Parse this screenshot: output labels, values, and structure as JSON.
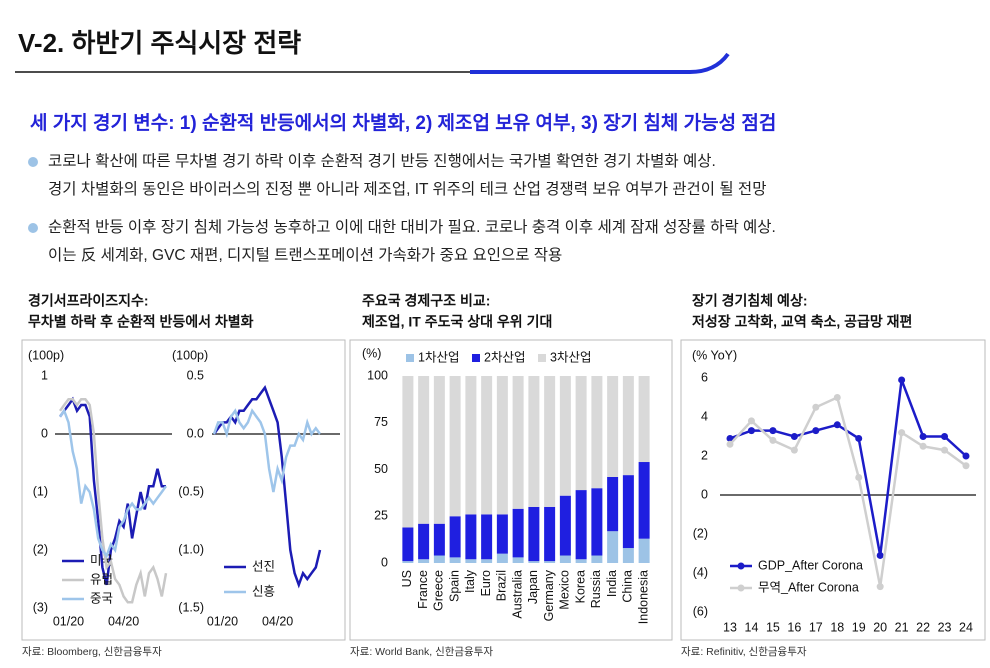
{
  "header": {
    "title": "V-2. 하반기 주식시장 전략",
    "subtitle": "세 가지 경기 변수: 1) 순환적 반등에서의 차별화, 2) 제조업 보유 여부, 3) 장기 침체 가능성 점검"
  },
  "bullets": [
    [
      "코로나 확산에 따른 무차별 경기 하락 이후 순환적 경기 반등 진행에서는 국가별 확연한 경기 차별화 예상.",
      "경기 차별화의 동인은 바이러스의 진정 뿐 아니라 제조업, IT 위주의 테크 산업 경쟁력 보유 여부가 관건이 될 전망"
    ],
    [
      "순환적 반등 이후 장기 침체 가능성 농후하고 이에 대한 대비가 필요. 코로나 충격 이후 세계 잠재 성장률 하락 예상.",
      "이는 反 세계화, GVC 재편, 디지털 트랜스포메이션 가속화가 중요 요인으로 작용"
    ]
  ],
  "chart_data": [
    {
      "type": "line",
      "title": [
        "경기서프라이즈지수:",
        "무차별 하락 후 순환적 반등에서 차별화"
      ],
      "y_unit": "(100p)",
      "source": "자료: Bloomberg, 신한금융투자",
      "categories": [
        null,
        null,
        "01/20",
        null,
        null,
        null,
        null,
        null,
        null,
        null,
        null,
        null,
        null,
        null,
        null,
        "04/20",
        null,
        null,
        null,
        null,
        null,
        null,
        null,
        null,
        null,
        null
      ],
      "ylim": [
        -3,
        1
      ],
      "yticks": [
        1,
        0,
        {
          "value": -1,
          "label": "(1)"
        },
        {
          "value": -2,
          "label": "(2)"
        },
        {
          "value": -3,
          "label": "(3)"
        }
      ],
      "zero_line": true,
      "series": [
        {
          "name": "미국",
          "color": "#1c1cb4",
          "values": [
            0.3,
            0.4,
            0.5,
            0.6,
            0.4,
            0.5,
            0.5,
            0.3,
            -0.8,
            -1.5,
            -2.3,
            -2.6,
            -2.0,
            -1.8,
            -1.5,
            -1.6,
            -1.2,
            -1.8,
            -1.4,
            -1.0,
            -1.3,
            -0.9,
            -0.9,
            -0.6,
            -0.9,
            -0.9
          ]
        },
        {
          "name": "유럽",
          "color": "#c8c8c8",
          "values": [
            0.4,
            0.5,
            0.6,
            0.6,
            0.5,
            0.6,
            0.6,
            0.5,
            0.0,
            -1.0,
            -1.8,
            -2.3,
            -2.2,
            -2.5,
            -2.6,
            -2.8,
            -2.9,
            -2.9,
            -2.6,
            -2.4,
            -2.8,
            -2.4,
            -2.3,
            -2.5,
            -2.8,
            -2.4
          ]
        },
        {
          "name": "중국",
          "color": "#9ec5ea",
          "values": [
            0.3,
            0.4,
            0.2,
            -0.3,
            -0.6,
            -1.2,
            -0.9,
            -1.0,
            -1.3,
            -1.8,
            -2.0,
            -2.1,
            -1.9,
            -2.0,
            -1.6,
            -1.5,
            -1.3,
            -1.2,
            -1.3,
            -1.3,
            -1.2,
            -1.1,
            -1.2,
            -1.1,
            -1.0,
            -0.9
          ]
        }
      ]
    },
    {
      "type": "line",
      "y_unit": "(100p)",
      "categories": [
        null,
        null,
        "01/20",
        null,
        null,
        null,
        null,
        null,
        null,
        null,
        null,
        null,
        null,
        null,
        null,
        "04/20",
        null,
        null,
        null,
        null,
        null,
        null,
        null,
        null,
        null,
        null
      ],
      "ylim": [
        -1.5,
        0.5
      ],
      "yticks": [
        0.5,
        {
          "value": 0,
          "label": "0.0"
        },
        {
          "value": -0.5,
          "label": "(0.5)"
        },
        {
          "value": -1,
          "label": "(1.0)"
        },
        {
          "value": -1.5,
          "label": "(1.5)"
        }
      ],
      "zero_line": true,
      "series": [
        {
          "name": "선진",
          "color": "#1c1cb4",
          "values": [
            0.0,
            0.05,
            0.1,
            0.1,
            0.15,
            0.1,
            0.2,
            0.2,
            0.25,
            0.3,
            0.3,
            0.35,
            0.4,
            0.3,
            0.2,
            0.1,
            -0.2,
            -0.6,
            -1.0,
            -1.2,
            -1.3,
            -1.2,
            -1.25,
            -1.2,
            -1.15,
            -1.0
          ]
        },
        {
          "name": "신흥",
          "color": "#9ec5ea",
          "values": [
            0.0,
            0.1,
            0.1,
            0.0,
            0.15,
            0.2,
            0.1,
            0.05,
            0.1,
            0.2,
            0.15,
            0.1,
            0.0,
            -0.3,
            -0.5,
            -0.3,
            -0.4,
            -0.2,
            -0.1,
            -0.1,
            0.0,
            -0.05,
            0.1,
            0.0,
            0.05,
            0.0
          ]
        }
      ]
    },
    {
      "type": "bar",
      "stacked": true,
      "title": [
        "주요국 경제구조 비교:",
        "제조업, IT 주도국 상대 우위 기대"
      ],
      "y_unit": "(%)",
      "source": "자료: World Bank, 신한금융투자",
      "categories": [
        "US",
        "France",
        "Greece",
        "Spain",
        "Italy",
        "Euro",
        "Brazil",
        "Australia",
        "Japan",
        "Germany",
        "Mexico",
        "Korea",
        "Russia",
        "India",
        "China",
        "Indonesia"
      ],
      "ylim": [
        0,
        100
      ],
      "yticks": [
        0,
        25,
        50,
        75,
        100
      ],
      "series": [
        {
          "name": "1차산업",
          "color": "#9dc3e6",
          "values": [
            1,
            2,
            4,
            3,
            2,
            2,
            5,
            3,
            1,
            1,
            4,
            2,
            4,
            17,
            8,
            13
          ]
        },
        {
          "name": "2차산업",
          "color": "#1f1fe0",
          "values": [
            18,
            19,
            17,
            22,
            24,
            24,
            21,
            26,
            29,
            29,
            32,
            37,
            36,
            29,
            39,
            41
          ]
        },
        {
          "name": "3차산업",
          "color": "#d9d9d9",
          "values": [
            81,
            79,
            79,
            75,
            74,
            74,
            74,
            71,
            70,
            70,
            64,
            61,
            60,
            54,
            53,
            46
          ]
        }
      ]
    },
    {
      "type": "line",
      "markers": true,
      "title": [
        "장기 경기침체 예상:",
        "저성장 고착화, 교역 축소, 공급망 재편"
      ],
      "y_unit": "(% YoY)",
      "source": "자료: Refinitiv, 신한금융투자",
      "categories": [
        "13",
        "14",
        "15",
        "16",
        "17",
        "18",
        "19",
        "20",
        "21",
        "22",
        "23",
        "24"
      ],
      "ylim": [
        -6,
        6
      ],
      "yticks": [
        6,
        4,
        2,
        0,
        {
          "value": -2,
          "label": "(2)"
        },
        {
          "value": -4,
          "label": "(4)"
        },
        {
          "value": -6,
          "label": "(6)"
        }
      ],
      "zero_line": true,
      "series": [
        {
          "name": "GDP_After Corona",
          "color": "#1c1cc8",
          "values": [
            2.9,
            3.3,
            3.3,
            3.0,
            3.3,
            3.6,
            2.9,
            -3.1,
            5.9,
            3.0,
            3.0,
            2.0
          ]
        },
        {
          "name": "무역_After Corona",
          "color": "#cfcfcf",
          "values": [
            2.6,
            3.8,
            2.8,
            2.3,
            4.5,
            5.0,
            0.9,
            -4.7,
            3.2,
            2.5,
            2.3,
            1.5
          ]
        }
      ]
    }
  ]
}
